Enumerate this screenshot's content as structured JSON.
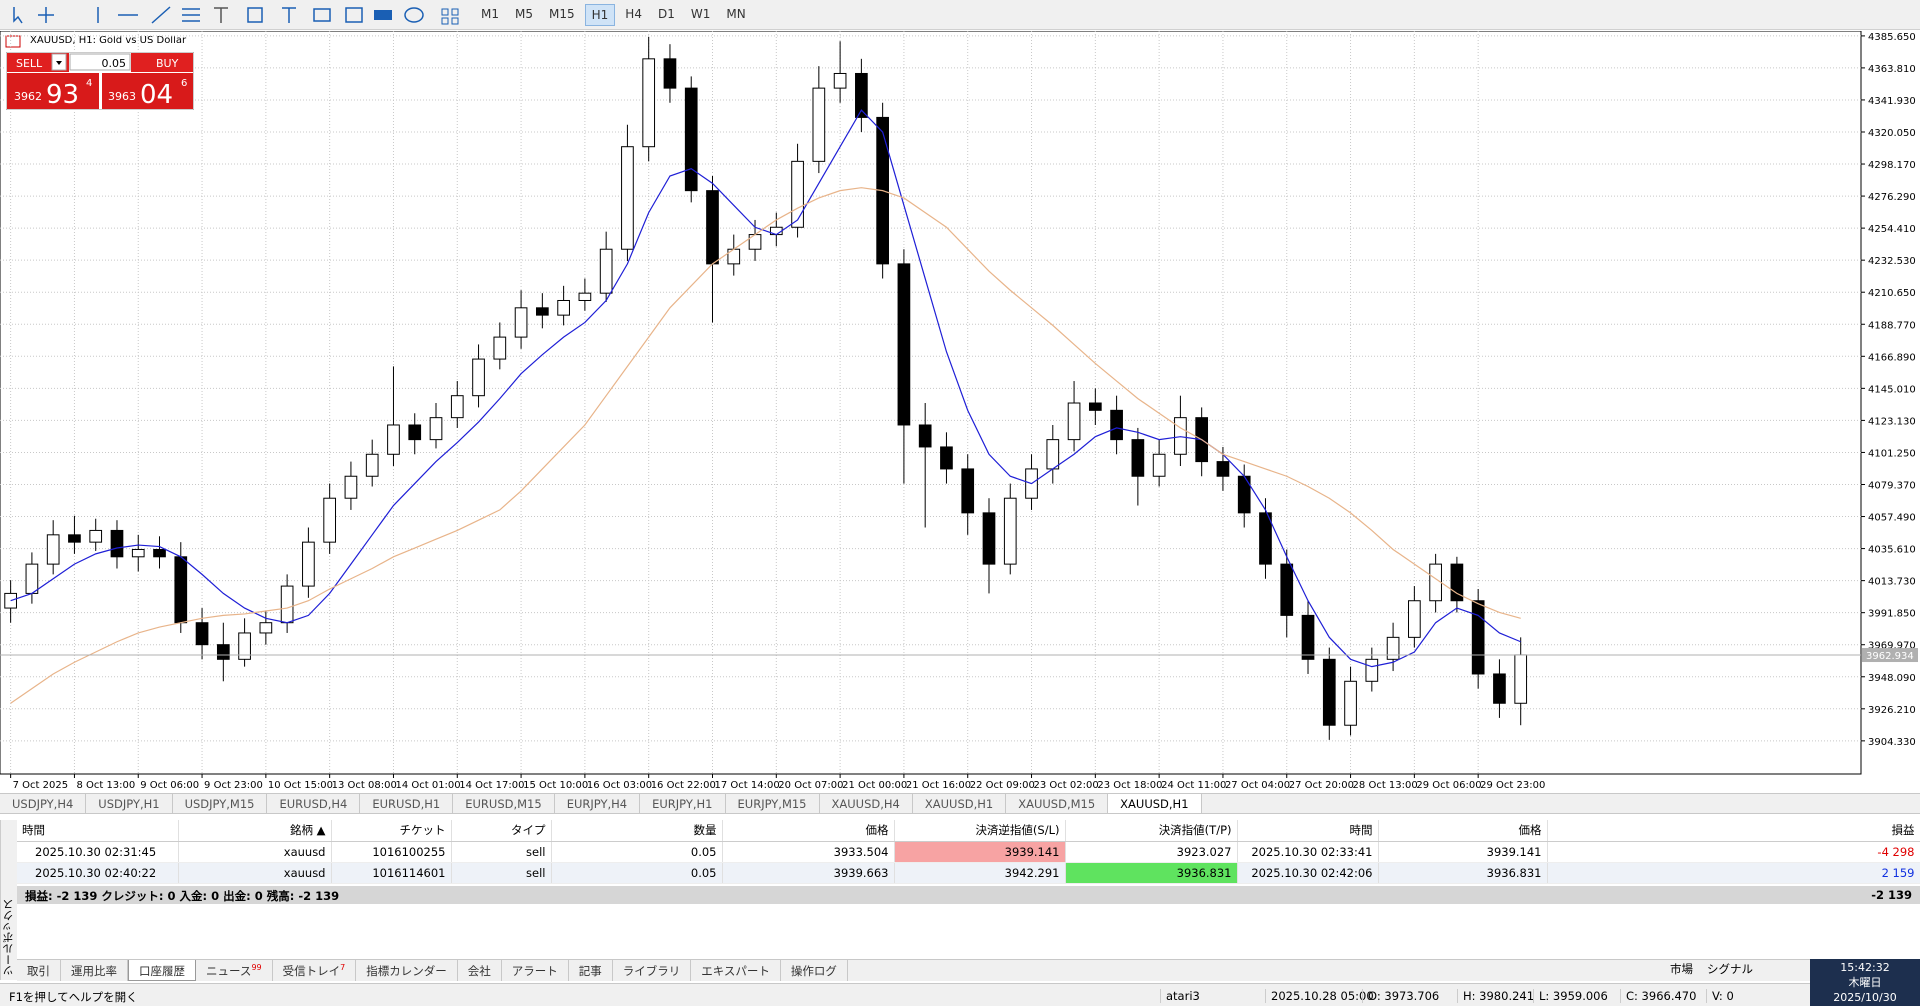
{
  "toolbar": {
    "timeframes": [
      "M1",
      "M5",
      "M15",
      "H1",
      "H4",
      "D1",
      "W1",
      "MN"
    ],
    "active": "H1"
  },
  "trade_panel": {
    "sell": "SELL",
    "buy": "BUY",
    "lots": "0.05",
    "bid_prefix": "3962",
    "bid_big": "93",
    "bid_sup": "4",
    "ask_prefix": "3963",
    "ask_big": "04",
    "ask_sup": "6"
  },
  "chart_data": {
    "type": "candlestick",
    "title": "XAUUSD, H1:  Gold vs US Dollar",
    "categories": [
      "7 Oct 2025",
      null,
      null,
      "8 Oct 13:00",
      null,
      null,
      "9 Oct 06:00",
      null,
      null,
      "9 Oct 23:00",
      null,
      null,
      "10 Oct 15:00",
      null,
      null,
      "13 Oct 08:00",
      null,
      null,
      "14 Oct 01:00",
      null,
      null,
      "14 Oct 17:00",
      null,
      null,
      "15 Oct 10:00",
      null,
      null,
      "16 Oct 03:00",
      null,
      null,
      "16 Oct 22:00",
      null,
      null,
      "17 Oct 14:00",
      null,
      null,
      "20 Oct 07:00",
      null,
      null,
      "21 Oct 00:00",
      null,
      null,
      "21 Oct 16:00",
      null,
      null,
      "22 Oct 09:00",
      null,
      null,
      "23 Oct 02:00",
      null,
      null,
      "23 Oct 18:00",
      null,
      null,
      "24 Oct 11:00",
      null,
      null,
      "27 Oct 04:00",
      null,
      null,
      "27 Oct 20:00",
      null,
      null,
      "28 Oct 13:00",
      null,
      null,
      "29 Oct 06:00",
      null,
      null,
      "29 Oct 23:00",
      null,
      null
    ],
    "open": [
      3995,
      4005,
      4025,
      4045,
      4040,
      4048,
      4030,
      4035,
      4030,
      3985,
      3970,
      3960,
      3978,
      3985,
      4010,
      4040,
      4070,
      4085,
      4100,
      4120,
      4110,
      4125,
      4140,
      4165,
      4180,
      4200,
      4195,
      4205,
      4210,
      4240,
      4310,
      4370,
      4350,
      4280,
      4230,
      4240,
      4250,
      4255,
      4300,
      4350,
      4360,
      4330,
      4230,
      4120,
      4105,
      4090,
      4060,
      4025,
      4070,
      4090,
      4110,
      4135,
      4130,
      4110,
      4085,
      4100,
      4125,
      4095,
      4085,
      4060,
      4025,
      3990,
      3960,
      3915,
      3945,
      3960,
      3975,
      4000,
      4025,
      4000,
      3950,
      3930
    ],
    "high": [
      4014,
      4033,
      4055,
      4058,
      4056,
      4055,
      4045,
      4044,
      4040,
      3995,
      3985,
      3988,
      3993,
      4018,
      4050,
      4080,
      4095,
      4110,
      4160,
      4128,
      4135,
      4150,
      4175,
      4190,
      4212,
      4210,
      4215,
      4220,
      4252,
      4325,
      4385,
      4380,
      4358,
      4290,
      4250,
      4260,
      4265,
      4312,
      4365,
      4382,
      4370,
      4340,
      4240,
      4135,
      4115,
      4100,
      4070,
      4080,
      4100,
      4120,
      4150,
      4145,
      4140,
      4118,
      4110,
      4140,
      4132,
      4105,
      4093,
      4070,
      4035,
      4000,
      3968,
      3955,
      3968,
      3985,
      4010,
      4032,
      4030,
      4008,
      3960,
      3975
    ],
    "low": [
      3985,
      3998,
      4018,
      4032,
      4034,
      4022,
      4020,
      4022,
      3978,
      3960,
      3945,
      3955,
      3970,
      3978,
      4002,
      4032,
      4062,
      4078,
      4092,
      4100,
      4104,
      4118,
      4132,
      4158,
      4172,
      4186,
      4188,
      4198,
      4204,
      4232,
      4300,
      4340,
      4272,
      4190,
      4222,
      4232,
      4242,
      4248,
      4292,
      4340,
      4320,
      4220,
      4080,
      4050,
      4080,
      4045,
      4005,
      4018,
      4062,
      4080,
      4102,
      4120,
      4100,
      4065,
      4078,
      4092,
      4085,
      4075,
      4050,
      4015,
      3975,
      3950,
      3905,
      3908,
      3938,
      3952,
      3968,
      3992,
      3992,
      3940,
      3920,
      3915
    ],
    "close": [
      4005,
      4025,
      4045,
      4040,
      4048,
      4030,
      4035,
      4030,
      3985,
      3970,
      3960,
      3978,
      3985,
      4010,
      4040,
      4070,
      4085,
      4100,
      4120,
      4110,
      4125,
      4140,
      4165,
      4180,
      4200,
      4195,
      4205,
      4210,
      4240,
      4310,
      4370,
      4350,
      4280,
      4230,
      4240,
      4250,
      4255,
      4300,
      4350,
      4360,
      4330,
      4230,
      4120,
      4105,
      4090,
      4060,
      4025,
      4070,
      4090,
      4110,
      4135,
      4130,
      4110,
      4085,
      4100,
      4125,
      4095,
      4085,
      4060,
      4025,
      3990,
      3960,
      3915,
      3945,
      3960,
      3975,
      4000,
      4025,
      4000,
      3950,
      3930,
      3963
    ],
    "series": [
      {
        "color": "#1f1fd6",
        "values": [
          4000,
          4005,
          4015,
          4025,
          4032,
          4036,
          4038,
          4037,
          4030,
          4018,
          4005,
          3995,
          3988,
          3985,
          3990,
          4005,
          4025,
          4045,
          4065,
          4080,
          4095,
          4108,
          4122,
          4138,
          4155,
          4168,
          4180,
          4190,
          4205,
          4230,
          4265,
          4290,
          4295,
          4285,
          4270,
          4255,
          4250,
          4260,
          4285,
          4310,
          4335,
          4320,
          4270,
          4220,
          4170,
          4130,
          4100,
          4085,
          4080,
          4090,
          4100,
          4112,
          4118,
          4115,
          4110,
          4112,
          4110,
          4100,
          4085,
          4062,
          4030,
          4000,
          3975,
          3960,
          3955,
          3958,
          3965,
          3985,
          3995,
          3990,
          3978,
          3972
        ]
      },
      {
        "color": "#e8b48a",
        "values": [
          3930,
          3940,
          3950,
          3958,
          3965,
          3972,
          3978,
          3982,
          3985,
          3988,
          3990,
          3991,
          3993,
          3995,
          4000,
          4008,
          4015,
          4022,
          4030,
          4036,
          4042,
          4048,
          4055,
          4062,
          4075,
          4090,
          4105,
          4120,
          4140,
          4160,
          4180,
          4200,
          4215,
          4230,
          4240,
          4250,
          4260,
          4268,
          4275,
          4280,
          4282,
          4280,
          4275,
          4265,
          4255,
          4240,
          4225,
          4212,
          4200,
          4188,
          4175,
          4162,
          4150,
          4138,
          4128,
          4118,
          4110,
          4100,
          4095,
          4090,
          4085,
          4078,
          4070,
          4060,
          4048,
          4035,
          4025,
          4015,
          4005,
          3998,
          3992,
          3988
        ]
      }
    ],
    "xlim": [
      -0.5,
      87
    ],
    "ylim": [
      3881.7,
      4389.0
    ],
    "yticks": [
      {
        "value": 4385.65,
        "label": "4385.650"
      },
      {
        "value": 4363.81,
        "label": "4363.810"
      },
      {
        "value": 4341.93,
        "label": "4341.930"
      },
      {
        "value": 4320.05,
        "label": "4320.050"
      },
      {
        "value": 4298.17,
        "label": "4298.170"
      },
      {
        "value": 4276.29,
        "label": "4276.290"
      },
      {
        "value": 4254.41,
        "label": "4254.410"
      },
      {
        "value": 4232.53,
        "label": "4232.530"
      },
      {
        "value": 4210.65,
        "label": "4210.650"
      },
      {
        "value": 4188.77,
        "label": "4188.770"
      },
      {
        "value": 4166.89,
        "label": "4166.890"
      },
      {
        "value": 4145.01,
        "label": "4145.010"
      },
      {
        "value": 4123.13,
        "label": "4123.130"
      },
      {
        "value": 4101.25,
        "label": "4101.250"
      },
      {
        "value": 4079.37,
        "label": "4079.370"
      },
      {
        "value": 4057.49,
        "label": "4057.490"
      },
      {
        "value": 4035.61,
        "label": "4035.610"
      },
      {
        "value": 4013.73,
        "label": "4013.730"
      },
      {
        "value": 3991.85,
        "label": "3991.850"
      },
      {
        "value": 3969.97,
        "label": "3969.970"
      },
      {
        "value": 3948.09,
        "label": "3948.090"
      },
      {
        "value": 3926.21,
        "label": "3926.210"
      },
      {
        "value": 3904.33,
        "label": "3904.330"
      }
    ],
    "current_price": {
      "value": 3962.934,
      "label": "3962.934"
    },
    "grid": true
  },
  "symbol_tabs": [
    "USDJPY,H4",
    "USDJPY,H1",
    "USDJPY,M15",
    "EURUSD,H4",
    "EURUSD,H1",
    "EURUSD,M15",
    "EURJPY,H4",
    "EURJPY,H1",
    "EURJPY,M15",
    "XAUUSD,H4",
    "XAUUSD,H1",
    "XAUUSD,M15",
    "XAUUSD,H1"
  ],
  "active_symbol_tab": "XAUUSD,H1",
  "table": {
    "columns": [
      "時間",
      "銘柄 ▲",
      "チケット",
      "タイプ",
      "数量",
      "価格",
      "決済逆指値(S/L)",
      "決済指値(T/P)",
      "時間",
      "価格",
      "損益"
    ],
    "rows": [
      [
        "2025.10.30 02:31:45",
        "xauusd",
        "1016100255",
        "sell",
        "0.05",
        "3933.504",
        "3939.141",
        "3923.027",
        "2025.10.30 02:33:41",
        "3939.141",
        "-4 298"
      ],
      [
        "2025.10.30 02:40:22",
        "xauusd",
        "1016114601",
        "sell",
        "0.05",
        "3939.663",
        "3942.291",
        "3936.831",
        "2025.10.30 02:42:06",
        "3936.831",
        "2 159"
      ]
    ],
    "summary": "損益: -2 139  クレジット: 0  入金: 0  出金: 0  残高: -2 139",
    "summary_total": "-2 139"
  },
  "toolbox_label": "ツールボックス",
  "bottom_tabs": [
    {
      "label": "取引"
    },
    {
      "label": "運用比率"
    },
    {
      "label": "口座履歴"
    },
    {
      "label": "ニュース",
      "badge": "99"
    },
    {
      "label": "受信トレイ",
      "badge": "7"
    },
    {
      "label": "指標カレンダー"
    },
    {
      "label": "会社"
    },
    {
      "label": "アラート"
    },
    {
      "label": "記事"
    },
    {
      "label": "ライブラリ"
    },
    {
      "label": "エキスパート"
    },
    {
      "label": "操作ログ"
    }
  ],
  "active_bottom_tab": "口座履歴",
  "status": {
    "help": "F1を押してヘルプを開く",
    "profile": "atari3",
    "time": "2025.10.28 05:00",
    "open": "O: 3973.706",
    "high": "H: 3980.241",
    "low": "L: 3959.006",
    "close": "C: 3966.470",
    "volume": "V: 0"
  },
  "side_buttons": {
    "market": "市場",
    "signal": "シグナル"
  },
  "clock": {
    "time": "15:42:32",
    "weekday": "木曜日",
    "date": "2025/10/30"
  }
}
